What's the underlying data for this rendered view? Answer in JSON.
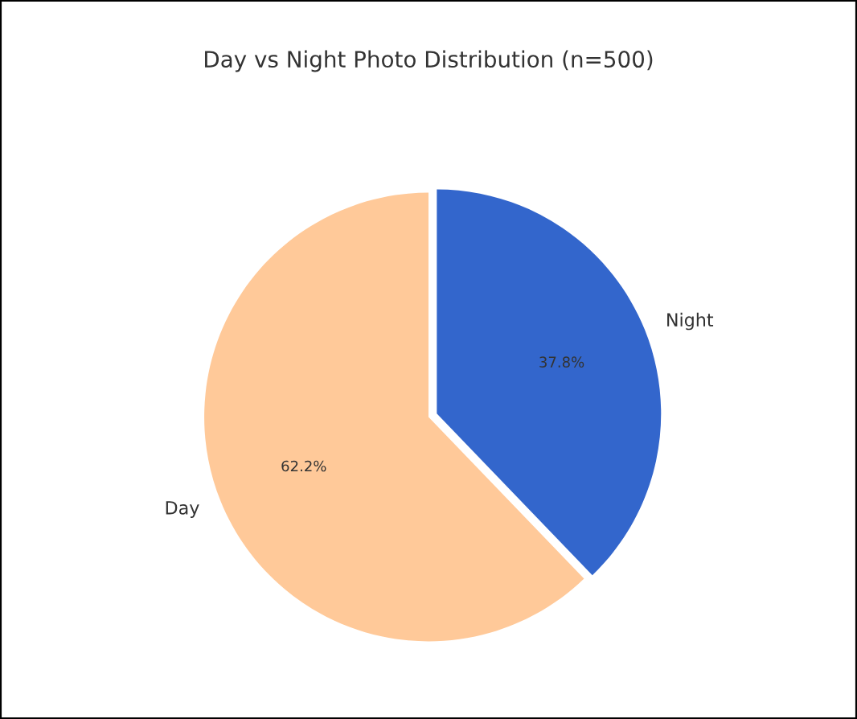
{
  "chart_data": {
    "type": "pie",
    "title": "Day vs Night Photo Distribution (n=500)",
    "categories": [
      "Night",
      "Day"
    ],
    "values": [
      37.8,
      62.2
    ],
    "colors": [
      "#3366cc",
      "#ffc999"
    ],
    "value_labels": [
      "37.8%",
      "62.2%"
    ],
    "legend": false
  }
}
